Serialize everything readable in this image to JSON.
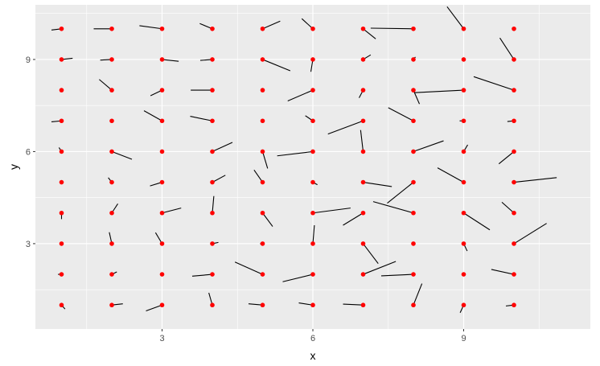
{
  "chart_data": {
    "type": "scatter",
    "subtype": "vector-field",
    "xlabel": "x",
    "ylabel": "y",
    "xlim": [
      0.48,
      11.52
    ],
    "ylim": [
      0.22,
      10.78
    ],
    "x_ticks": [
      3,
      6,
      9
    ],
    "y_ticks": [
      3,
      6,
      9
    ],
    "x_tick_labels": [
      "3",
      "6",
      "9"
    ],
    "y_tick_labels": [
      "3",
      "6",
      "9"
    ],
    "grid": true,
    "legend": "none",
    "colors": {
      "point": "#ff0000",
      "segment": "#000000",
      "panel": "#ebebeb",
      "grid": "#ffffff"
    },
    "vectors": [
      [
        1,
        1,
        1.07,
        0.87
      ],
      [
        2,
        1,
        2.22,
        1.04
      ],
      [
        3,
        1,
        2.68,
        0.81
      ],
      [
        4,
        1,
        3.93,
        1.4
      ],
      [
        5,
        1,
        4.72,
        1.04
      ],
      [
        6,
        1,
        5.72,
        1.07
      ],
      [
        7,
        1,
        6.6,
        1.03
      ],
      [
        8,
        1,
        8.17,
        1.7
      ],
      [
        9,
        1,
        8.93,
        0.75
      ],
      [
        10,
        1,
        9.84,
        0.97
      ],
      [
        1,
        2,
        0.93,
        2.0
      ],
      [
        2,
        2,
        2.1,
        2.08
      ],
      [
        3,
        2,
        3.0,
        2.0
      ],
      [
        4,
        2,
        3.6,
        1.94
      ],
      [
        5,
        2,
        4.45,
        2.4
      ],
      [
        6,
        2,
        5.4,
        1.76
      ],
      [
        7,
        2,
        7.65,
        2.42
      ],
      [
        8,
        2,
        7.36,
        1.95
      ],
      [
        9,
        2,
        9.0,
        2.0
      ],
      [
        10,
        2,
        9.55,
        2.16
      ],
      [
        1,
        3,
        1.0,
        3.0
      ],
      [
        2,
        3,
        1.95,
        3.37
      ],
      [
        3,
        3,
        2.87,
        3.36
      ],
      [
        4,
        3,
        4.12,
        3.04
      ],
      [
        5,
        3,
        4.95,
        3.0
      ],
      [
        6,
        3,
        6.03,
        3.6
      ],
      [
        7,
        3,
        7.3,
        2.35
      ],
      [
        8,
        3,
        8.0,
        3.0
      ],
      [
        9,
        3,
        9.07,
        2.76
      ],
      [
        10,
        3,
        10.65,
        3.66
      ],
      [
        1,
        4,
        1.0,
        3.8
      ],
      [
        2,
        4,
        2.12,
        4.3
      ],
      [
        3,
        4,
        3.38,
        4.16
      ],
      [
        4,
        4,
        4.03,
        4.55
      ],
      [
        5,
        4,
        5.2,
        3.56
      ],
      [
        6,
        4,
        6.75,
        4.16
      ],
      [
        7,
        4,
        6.6,
        3.6
      ],
      [
        8,
        4,
        7.2,
        4.37
      ],
      [
        9,
        4,
        9.52,
        3.45
      ],
      [
        10,
        4,
        9.76,
        4.35
      ],
      [
        1,
        5,
        1.0,
        5.0
      ],
      [
        2,
        5,
        1.93,
        5.15
      ],
      [
        3,
        5,
        2.76,
        4.88
      ],
      [
        4,
        5,
        4.26,
        5.23
      ],
      [
        5,
        5,
        4.83,
        5.4
      ],
      [
        6,
        5,
        6.09,
        4.92
      ],
      [
        7,
        5,
        7.57,
        4.86
      ],
      [
        8,
        5,
        7.48,
        4.32
      ],
      [
        9,
        5,
        8.48,
        5.47
      ],
      [
        10,
        5,
        10.85,
        5.15
      ],
      [
        1,
        6,
        0.95,
        6.13
      ],
      [
        2,
        6,
        2.4,
        5.75
      ],
      [
        3,
        6,
        3.0,
        6.0
      ],
      [
        4,
        6,
        4.4,
        6.3
      ],
      [
        5,
        6,
        5.1,
        5.45
      ],
      [
        6,
        6,
        5.29,
        5.86
      ],
      [
        7,
        6,
        6.95,
        6.7
      ],
      [
        8,
        6,
        8.6,
        6.35
      ],
      [
        9,
        6,
        9.08,
        6.22
      ],
      [
        10,
        6,
        9.7,
        5.6
      ],
      [
        1,
        7,
        0.8,
        6.97
      ],
      [
        2,
        7,
        2.02,
        6.98
      ],
      [
        3,
        7,
        2.64,
        7.33
      ],
      [
        4,
        7,
        3.56,
        7.15
      ],
      [
        5,
        7,
        5.0,
        7.0
      ],
      [
        6,
        7,
        5.85,
        7.17
      ],
      [
        7,
        7,
        6.3,
        6.57
      ],
      [
        8,
        7,
        7.5,
        7.43
      ],
      [
        9,
        7,
        8.92,
        7.0
      ],
      [
        10,
        7,
        9.87,
        6.98
      ],
      [
        1,
        8,
        1.0,
        8.0
      ],
      [
        2,
        8,
        1.75,
        8.35
      ],
      [
        3,
        8,
        2.77,
        7.82
      ],
      [
        4,
        8,
        3.57,
        8.0
      ],
      [
        5,
        8,
        5.0,
        8.0
      ],
      [
        6,
        8,
        5.5,
        7.65
      ],
      [
        7,
        8,
        6.92,
        7.75
      ],
      [
        8,
        8,
        8.12,
        7.55
      ],
      [
        9,
        8,
        8.02,
        7.92
      ],
      [
        10,
        8,
        9.2,
        8.44
      ],
      [
        1,
        9,
        1.22,
        9.04
      ],
      [
        2,
        9,
        1.77,
        8.98
      ],
      [
        3,
        9,
        3.33,
        8.94
      ],
      [
        4,
        9,
        3.76,
        8.97
      ],
      [
        5,
        9,
        5.55,
        8.63
      ],
      [
        6,
        9,
        5.96,
        8.6
      ],
      [
        7,
        9,
        7.15,
        9.15
      ],
      [
        8,
        9,
        8.04,
        9.08
      ],
      [
        9,
        9,
        9.0,
        9.0
      ],
      [
        10,
        9,
        9.72,
        9.7
      ],
      [
        1,
        10,
        0.8,
        9.96
      ],
      [
        2,
        10,
        1.64,
        10.0
      ],
      [
        3,
        10,
        2.55,
        10.1
      ],
      [
        4,
        10,
        3.75,
        10.17
      ],
      [
        5,
        10,
        5.35,
        10.25
      ],
      [
        6,
        10,
        5.78,
        10.33
      ],
      [
        7,
        10,
        7.25,
        9.67
      ],
      [
        8,
        10,
        7.15,
        10.02
      ],
      [
        9,
        10,
        8.67,
        10.72
      ],
      [
        10,
        10,
        10.0,
        10.0
      ]
    ]
  }
}
